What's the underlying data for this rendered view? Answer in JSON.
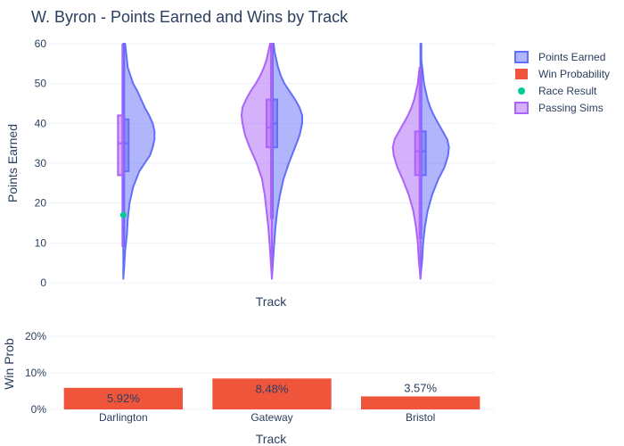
{
  "chart_data": {
    "title": "W. Byron - Points Earned and Wins by Track",
    "categories": [
      "Darlington",
      "Gateway",
      "Bristol"
    ],
    "top": {
      "type": "violin",
      "xlabel": "Track",
      "ylabel": "Points Earned",
      "ylim": [
        0,
        60
      ],
      "yticks": [
        0,
        10,
        20,
        30,
        40,
        50,
        60
      ],
      "series": [
        {
          "name": "Points Earned",
          "color": "#636efa",
          "side": "right",
          "violins": [
            {
              "category": "Darlington",
              "box": {
                "q1": 28,
                "median": 35,
                "q3": 41,
                "min": 9,
                "max": 60
              },
              "profile": [
                [
                  1,
                  0.0
                ],
                [
                  4,
                  0.01
                ],
                [
                  8,
                  0.02
                ],
                [
                  12,
                  0.04
                ],
                [
                  16,
                  0.05
                ],
                [
                  20,
                  0.07
                ],
                [
                  24,
                  0.11
                ],
                [
                  28,
                  0.18
                ],
                [
                  30,
                  0.24
                ],
                [
                  32,
                  0.3
                ],
                [
                  34,
                  0.33
                ],
                [
                  36,
                  0.35
                ],
                [
                  38,
                  0.35
                ],
                [
                  40,
                  0.33
                ],
                [
                  42,
                  0.29
                ],
                [
                  44,
                  0.24
                ],
                [
                  46,
                  0.2
                ],
                [
                  48,
                  0.16
                ],
                [
                  50,
                  0.11
                ],
                [
                  52,
                  0.08
                ],
                [
                  54,
                  0.05
                ],
                [
                  56,
                  0.04
                ],
                [
                  58,
                  0.03
                ],
                [
                  60,
                  0.02
                ]
              ]
            },
            {
              "category": "Gateway",
              "box": {
                "q1": 34,
                "median": 40,
                "q3": 46,
                "min": 16,
                "max": 60
              },
              "profile": [
                [
                  1,
                  0.0
                ],
                [
                  8,
                  0.02
                ],
                [
                  14,
                  0.04
                ],
                [
                  18,
                  0.06
                ],
                [
                  22,
                  0.09
                ],
                [
                  26,
                  0.13
                ],
                [
                  30,
                  0.19
                ],
                [
                  34,
                  0.26
                ],
                [
                  37,
                  0.31
                ],
                [
                  40,
                  0.34
                ],
                [
                  42,
                  0.34
                ],
                [
                  44,
                  0.31
                ],
                [
                  46,
                  0.26
                ],
                [
                  48,
                  0.2
                ],
                [
                  50,
                  0.14
                ],
                [
                  52,
                  0.1
                ],
                [
                  54,
                  0.07
                ],
                [
                  56,
                  0.05
                ],
                [
                  58,
                  0.03
                ],
                [
                  60,
                  0.02
                ]
              ]
            },
            {
              "category": "Bristol",
              "box": {
                "q1": 27,
                "median": 33,
                "q3": 38,
                "min": 11,
                "max": 54
              },
              "profile": [
                [
                  1,
                  0.0
                ],
                [
                  6,
                  0.02
                ],
                [
                  10,
                  0.03
                ],
                [
                  14,
                  0.05
                ],
                [
                  18,
                  0.08
                ],
                [
                  22,
                  0.13
                ],
                [
                  26,
                  0.2
                ],
                [
                  29,
                  0.27
                ],
                [
                  32,
                  0.31
                ],
                [
                  34,
                  0.32
                ],
                [
                  36,
                  0.3
                ],
                [
                  38,
                  0.25
                ],
                [
                  40,
                  0.2
                ],
                [
                  42,
                  0.15
                ],
                [
                  44,
                  0.11
                ],
                [
                  46,
                  0.08
                ],
                [
                  48,
                  0.06
                ],
                [
                  50,
                  0.04
                ],
                [
                  52,
                  0.03
                ],
                [
                  54,
                  0.02
                ],
                [
                  56,
                  0.01
                ],
                [
                  60,
                  0.01
                ]
              ]
            }
          ]
        },
        {
          "name": "Passing Sims",
          "color": "#ab63fa",
          "side": "left",
          "violins": [
            {
              "category": "Darlington",
              "box": {
                "q1": 27,
                "median": 35,
                "q3": 42,
                "min": 9,
                "max": 60
              },
              "profile": [
                [
                  1,
                  0.0
                ],
                [
                  60,
                  0.0
                ]
              ]
            },
            {
              "category": "Gateway",
              "box": {
                "q1": 34,
                "median": 39,
                "q3": 46,
                "min": 16,
                "max": 60
              },
              "profile": [
                [
                  1,
                  0.0
                ],
                [
                  8,
                  0.02
                ],
                [
                  14,
                  0.04
                ],
                [
                  18,
                  0.06
                ],
                [
                  22,
                  0.08
                ],
                [
                  26,
                  0.11
                ],
                [
                  30,
                  0.17
                ],
                [
                  34,
                  0.25
                ],
                [
                  37,
                  0.3
                ],
                [
                  40,
                  0.33
                ],
                [
                  42,
                  0.34
                ],
                [
                  44,
                  0.33
                ],
                [
                  46,
                  0.29
                ],
                [
                  48,
                  0.24
                ],
                [
                  50,
                  0.18
                ],
                [
                  52,
                  0.13
                ],
                [
                  54,
                  0.09
                ],
                [
                  56,
                  0.06
                ],
                [
                  58,
                  0.04
                ],
                [
                  60,
                  0.02
                ]
              ]
            },
            {
              "category": "Bristol",
              "box": {
                "q1": 27,
                "median": 33,
                "q3": 38,
                "min": 11,
                "max": 54
              },
              "profile": [
                [
                  1,
                  0.0
                ],
                [
                  6,
                  0.02
                ],
                [
                  10,
                  0.03
                ],
                [
                  14,
                  0.05
                ],
                [
                  18,
                  0.08
                ],
                [
                  22,
                  0.13
                ],
                [
                  26,
                  0.2
                ],
                [
                  29,
                  0.26
                ],
                [
                  32,
                  0.3
                ],
                [
                  34,
                  0.31
                ],
                [
                  36,
                  0.29
                ],
                [
                  38,
                  0.24
                ],
                [
                  40,
                  0.19
                ],
                [
                  42,
                  0.14
                ],
                [
                  44,
                  0.1
                ],
                [
                  46,
                  0.07
                ],
                [
                  48,
                  0.05
                ],
                [
                  50,
                  0.03
                ],
                [
                  52,
                  0.02
                ],
                [
                  54,
                  0.01
                ]
              ]
            }
          ]
        }
      ],
      "points": {
        "name": "Race Result",
        "color": "#00cc96",
        "values": [
          {
            "category": "Darlington",
            "y": 17
          }
        ]
      }
    },
    "bottom": {
      "type": "bar",
      "xlabel": "Track",
      "ylabel": "Win Prob",
      "ylim": [
        0,
        0.22
      ],
      "yticks": [
        0,
        0.1,
        0.2
      ],
      "ytick_labels": [
        "0%",
        "10%",
        "20%"
      ],
      "series": [
        {
          "name": "Win Probability",
          "color": "#ef553b",
          "values": [
            0.0592,
            0.0848,
            0.0357
          ],
          "labels": [
            "5.92%",
            "8.48%",
            "3.57%"
          ]
        }
      ]
    },
    "legend": {
      "placement": "top-right",
      "entries": [
        {
          "name": "Points Earned",
          "kind": "violin",
          "color": "#636efa"
        },
        {
          "name": "Win Probability",
          "kind": "bar",
          "color": "#ef553b"
        },
        {
          "name": "Race Result",
          "kind": "point",
          "color": "#00cc96"
        },
        {
          "name": "Passing Sims",
          "kind": "violin",
          "color": "#ab63fa"
        }
      ]
    }
  }
}
